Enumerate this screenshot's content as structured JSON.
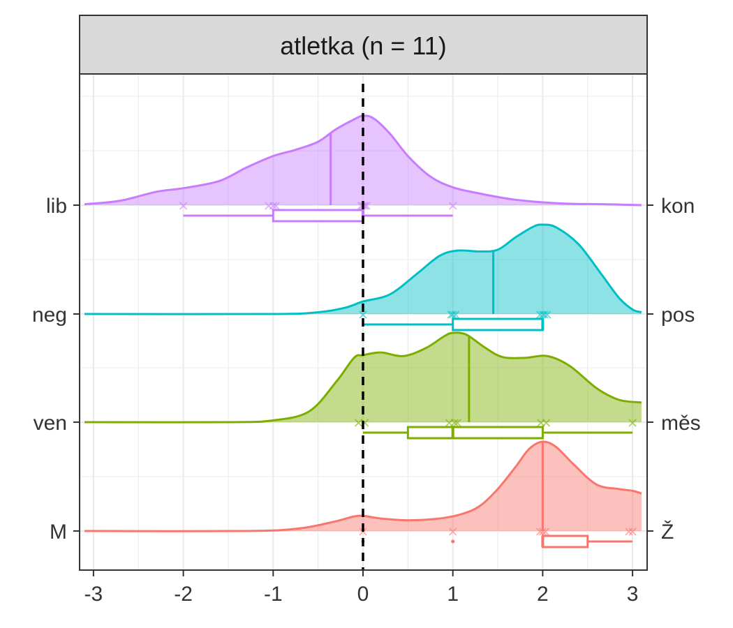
{
  "chart_data": {
    "type": "ridgeline",
    "panel_title": "atletka (n = 11)",
    "xlabel": "",
    "ylabel": "",
    "xlim": [
      -3.1,
      3.1
    ],
    "x_ticks": [
      -3,
      -2,
      -1,
      0,
      1,
      2,
      3
    ],
    "grid": true,
    "reference_line_x": 0,
    "rows": [
      {
        "left_label": "lib",
        "right_label": "kon",
        "color": "#C77CFF",
        "mean": -0.36,
        "points": [
          -2,
          -1.05,
          -1,
          -0.97,
          -0.02,
          0,
          0.02,
          0.04,
          1
        ],
        "box": {
          "whisker_low": -2,
          "q1": -1,
          "median": 0,
          "q3": 0,
          "whisker_high": 1
        },
        "density": [
          [
            -3.1,
            0.01
          ],
          [
            -2.7,
            0.05
          ],
          [
            -2.3,
            0.15
          ],
          [
            -2.0,
            0.19
          ],
          [
            -1.6,
            0.27
          ],
          [
            -1.3,
            0.42
          ],
          [
            -1.0,
            0.55
          ],
          [
            -0.75,
            0.62
          ],
          [
            -0.5,
            0.71
          ],
          [
            -0.3,
            0.85
          ],
          [
            -0.1,
            0.96
          ],
          [
            0.0,
            1.0
          ],
          [
            0.12,
            0.97
          ],
          [
            0.3,
            0.8
          ],
          [
            0.5,
            0.55
          ],
          [
            0.75,
            0.32
          ],
          [
            1.0,
            0.2
          ],
          [
            1.3,
            0.13
          ],
          [
            1.7,
            0.06
          ],
          [
            2.2,
            0.02
          ],
          [
            2.7,
            0.01
          ],
          [
            3.1,
            0.0
          ]
        ]
      },
      {
        "left_label": "neg",
        "right_label": "pos",
        "color": "#00BFC4",
        "mean": 1.45,
        "points": [
          0,
          0.98,
          1.0,
          1.03,
          1.97,
          2.0,
          2.02,
          2.05
        ],
        "box": {
          "whisker_low": 0,
          "q1": 1,
          "median": 2,
          "q3": 2,
          "whisker_high": 2
        },
        "density": [
          [
            -3.1,
            0.0
          ],
          [
            -1.0,
            0.0
          ],
          [
            -0.5,
            0.02
          ],
          [
            -0.2,
            0.07
          ],
          [
            0.0,
            0.14
          ],
          [
            0.3,
            0.22
          ],
          [
            0.6,
            0.45
          ],
          [
            0.85,
            0.65
          ],
          [
            1.05,
            0.71
          ],
          [
            1.3,
            0.7
          ],
          [
            1.5,
            0.72
          ],
          [
            1.7,
            0.86
          ],
          [
            1.9,
            0.98
          ],
          [
            2.0,
            1.0
          ],
          [
            2.15,
            0.97
          ],
          [
            2.4,
            0.78
          ],
          [
            2.65,
            0.45
          ],
          [
            2.85,
            0.18
          ],
          [
            3.0,
            0.05
          ],
          [
            3.1,
            0.02
          ]
        ]
      },
      {
        "left_label": "ven",
        "right_label": "měs",
        "color": "#7CAE00",
        "mean": 1.18,
        "points": [
          -0.05,
          0.02,
          0.96,
          1.02,
          1.05,
          1.98,
          2.04,
          3.0
        ],
        "box": {
          "whisker_low": 0,
          "q1": 0.5,
          "median": 1,
          "q3": 2,
          "whisker_high": 3
        },
        "density": [
          [
            -3.1,
            0.0
          ],
          [
            -1.5,
            0.0
          ],
          [
            -1.0,
            0.02
          ],
          [
            -0.6,
            0.12
          ],
          [
            -0.3,
            0.45
          ],
          [
            -0.1,
            0.72
          ],
          [
            0.0,
            0.75
          ],
          [
            0.2,
            0.78
          ],
          [
            0.45,
            0.74
          ],
          [
            0.7,
            0.83
          ],
          [
            0.9,
            0.96
          ],
          [
            1.0,
            1.0
          ],
          [
            1.15,
            0.98
          ],
          [
            1.35,
            0.84
          ],
          [
            1.55,
            0.73
          ],
          [
            1.8,
            0.72
          ],
          [
            2.05,
            0.74
          ],
          [
            2.3,
            0.63
          ],
          [
            2.6,
            0.38
          ],
          [
            2.85,
            0.25
          ],
          [
            3.1,
            0.22
          ]
        ]
      },
      {
        "left_label": "M",
        "right_label": "Ž",
        "color": "#F8766D",
        "mean": 2.0,
        "points": [
          0,
          1.0,
          1.97,
          2.0,
          2.03,
          2.96,
          3.0
        ],
        "box": {
          "whisker_low": 2,
          "q1": 2,
          "median": 2,
          "q3": 2.5,
          "whisker_high": 3
        },
        "outliers": [
          0,
          1
        ],
        "density": [
          [
            -3.1,
            0.0
          ],
          [
            -1.3,
            0.0
          ],
          [
            -0.7,
            0.03
          ],
          [
            -0.3,
            0.11
          ],
          [
            -0.05,
            0.17
          ],
          [
            0.2,
            0.14
          ],
          [
            0.5,
            0.12
          ],
          [
            0.85,
            0.14
          ],
          [
            1.1,
            0.19
          ],
          [
            1.3,
            0.28
          ],
          [
            1.5,
            0.47
          ],
          [
            1.7,
            0.72
          ],
          [
            1.85,
            0.92
          ],
          [
            2.0,
            1.0
          ],
          [
            2.15,
            0.94
          ],
          [
            2.35,
            0.74
          ],
          [
            2.6,
            0.52
          ],
          [
            2.85,
            0.47
          ],
          [
            3.0,
            0.45
          ],
          [
            3.1,
            0.42
          ]
        ]
      }
    ]
  }
}
